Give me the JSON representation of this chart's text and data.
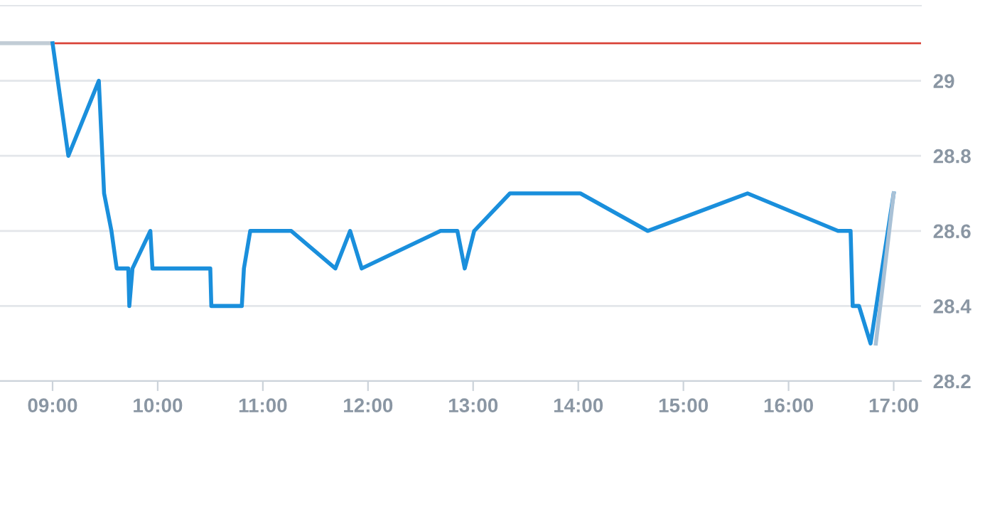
{
  "chart_data": {
    "type": "line",
    "xlim": [
      8.5,
      17.26
    ],
    "ylim": [
      28.2,
      29.2
    ],
    "xticks": [
      {
        "value": 9,
        "label": "09:00"
      },
      {
        "value": 10,
        "label": "10:00"
      },
      {
        "value": 11,
        "label": "11:00"
      },
      {
        "value": 12,
        "label": "12:00"
      },
      {
        "value": 13,
        "label": "13:00"
      },
      {
        "value": 14,
        "label": "14:00"
      },
      {
        "value": 15,
        "label": "15:00"
      },
      {
        "value": 16,
        "label": "16:00"
      },
      {
        "value": 17,
        "label": "17:00"
      }
    ],
    "yticks": [
      28.2,
      28.4,
      28.6,
      28.8,
      29
    ],
    "grid": "y",
    "line_style": "solid",
    "ref_lines": [
      {
        "axis": "y",
        "value": 29.1,
        "color": "#d9453a"
      }
    ],
    "series": [
      {
        "color": "#c2cdd6",
        "x": [
          8.5,
          9.0
        ],
        "values": [
          29.1,
          29.1
        ]
      },
      {
        "color": "#1a8fdc",
        "x": [
          9.0,
          9.15,
          9.44,
          9.49,
          9.56,
          9.61,
          9.72,
          9.73,
          9.76,
          9.93,
          9.95,
          10.5,
          10.51,
          10.8,
          10.82,
          10.88,
          11.27,
          11.69,
          11.83,
          11.94,
          12.69,
          12.85,
          12.92,
          13.01,
          13.35,
          14.02,
          14.66,
          15.61,
          16.47,
          16.59,
          16.61,
          16.67,
          16.78,
          17.0
        ],
        "values": [
          29.1,
          28.8,
          29.0,
          28.7,
          28.6,
          28.5,
          28.5,
          28.4,
          28.5,
          28.6,
          28.5,
          28.5,
          28.4,
          28.4,
          28.5,
          28.6,
          28.6,
          28.5,
          28.6,
          28.5,
          28.6,
          28.6,
          28.5,
          28.6,
          28.7,
          28.7,
          28.6,
          28.7,
          28.6,
          28.6,
          28.4,
          28.4,
          28.3,
          28.7
        ]
      },
      {
        "color": "#a9c1d6",
        "x": [
          16.83,
          17.0
        ],
        "values": [
          28.3,
          28.7
        ]
      }
    ]
  }
}
